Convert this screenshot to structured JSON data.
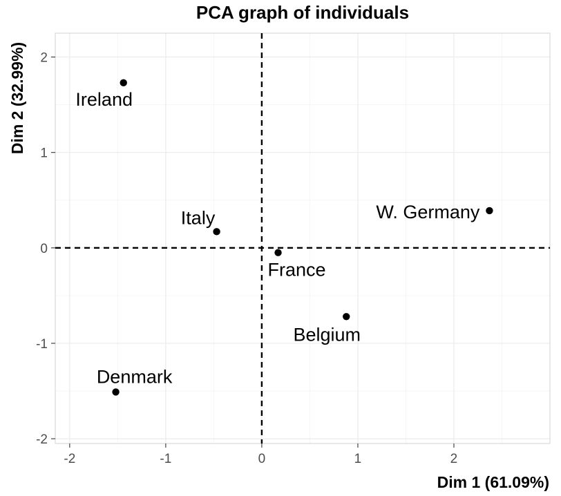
{
  "chart_data": {
    "type": "scatter",
    "title": "PCA graph of individuals",
    "xlabel": "Dim 1 (61.09%)",
    "ylabel": "Dim 2 (32.99%)",
    "xlim": [
      -2.15,
      3.0
    ],
    "ylim": [
      -2.05,
      2.25
    ],
    "xticks": [
      -2,
      -1,
      0,
      1,
      2
    ],
    "yticks": [
      -2,
      -1,
      0,
      1,
      2
    ],
    "grid": true,
    "reference_lines": {
      "x": 0,
      "y": 0,
      "style": "dashed"
    },
    "points": [
      {
        "label": "Ireland",
        "x": -1.44,
        "y": 1.73
      },
      {
        "label": "Italy",
        "x": -0.47,
        "y": 0.17
      },
      {
        "label": "France",
        "x": 0.17,
        "y": -0.05
      },
      {
        "label": "W. Germany",
        "x": 2.37,
        "y": 0.39
      },
      {
        "label": "Belgium",
        "x": 0.88,
        "y": -0.72
      },
      {
        "label": "Denmark",
        "x": -1.52,
        "y": -1.51
      }
    ]
  }
}
